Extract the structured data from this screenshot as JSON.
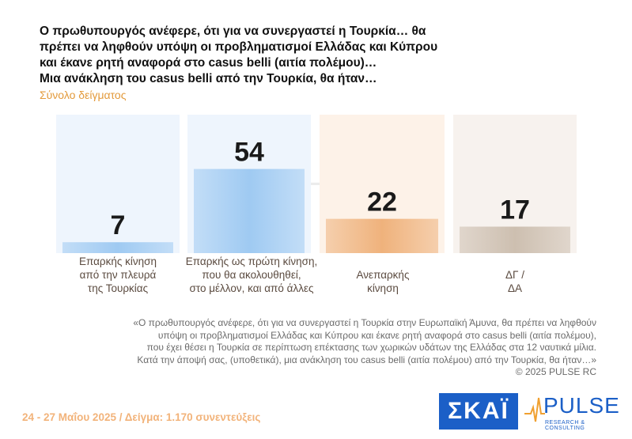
{
  "title_lines": [
    "Ο πρωθυπουργός ανέφερε, ότι για να συνεργαστεί η Τουρκία… θα",
    "πρέπει να ληφθούν υπόψη οι προβληματισμοί Ελλάδας και Κύπρου",
    "και έκανε ρητή αναφορά στο casus belli (αιτία πολέμου)…",
    "Μια ανάκληση του casus belli από την Τουρκία, θα ήταν…"
  ],
  "subtitle": "Σύνολο δείγματος",
  "chart_data": {
    "type": "bar",
    "categories": [
      [
        "Επαρκής κίνηση",
        "από την πλευρά",
        "της Τουρκίας"
      ],
      [
        "Επαρκής ως πρώτη κίνηση,",
        "που θα ακολουθηθεί,",
        "στο μέλλον, και από άλλες"
      ],
      [
        "Ανεπαρκής",
        "κίνηση"
      ],
      [
        "ΔΓ /",
        "ΔΑ"
      ]
    ],
    "values": [
      7,
      54,
      22,
      17
    ],
    "colors": [
      "#9fcaf2",
      "#9fcaf2",
      "#efb27c",
      "#cdbfb0"
    ],
    "background_colors": [
      "#eef5fd",
      "#eef5fd",
      "#fdf2e8",
      "#f7f2ee"
    ],
    "ylim": [
      0,
      100
    ]
  },
  "watermark": "PULSE",
  "footnote_lines": [
    "«Ο πρωθυπουργός ανέφερε, ότι για να συνεργαστεί η Τουρκία στην Ευρωπαϊκή Άμυνα, θα πρέπει να ληφθούν",
    "υπόψη οι προβληματισμοί Ελλάδας και Κύπρου και έκανε ρητή αναφορά στο casus belli (αιτία πολέμου),",
    "που έχει θέσει η Τουρκία σε περίπτωση επέκτασης των χωρικών υδάτων της Ελλάδας στα 12 ναυτικά μίλια.",
    "Κατά την άποψή σας, (υποθετικά), μια ανάκληση του casus belli (αιτία πολέμου) από την Τουρκία, θα ήταν…»",
    "©  2025  PULSE RC"
  ],
  "footer": {
    "dates_sample": "24 - 27 Μαΐου 2025  /  Δείγμα:  1.170 συνεντεύξεις"
  },
  "logos": {
    "skai": "ΣΚΑΪ",
    "pulse": "PULSE",
    "pulse_sub": "RESEARCH & CONSULTING"
  }
}
